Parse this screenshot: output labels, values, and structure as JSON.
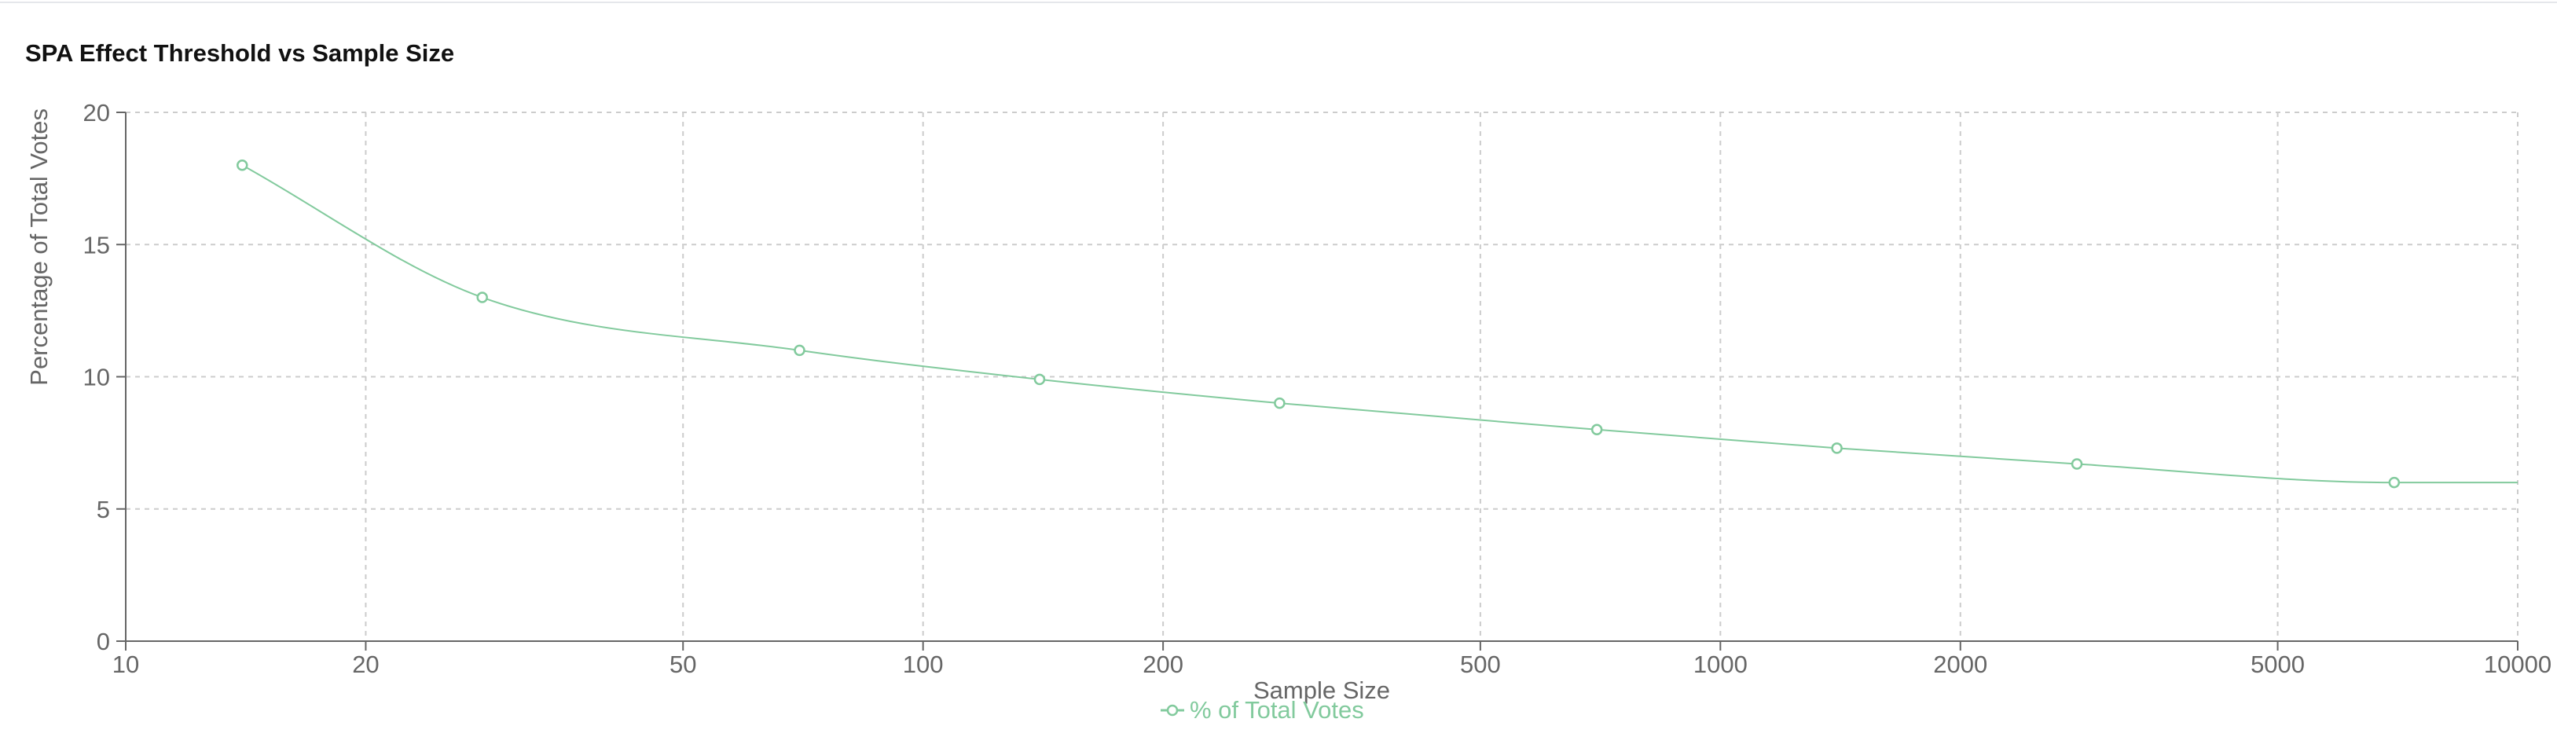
{
  "chart_data": {
    "type": "line",
    "title": "SPA Effect Threshold vs Sample Size",
    "xlabel": "Sample Size",
    "ylabel": "Percentage of Total Votes",
    "x_scale": "log",
    "xlim": [
      10,
      10000
    ],
    "ylim": [
      0,
      20
    ],
    "x_ticks": [
      "10",
      "20",
      "50",
      "100",
      "200",
      "500",
      "1000",
      "2000",
      "5000",
      "10000"
    ],
    "y_ticks": [
      "0",
      "5",
      "10",
      "15",
      "20"
    ],
    "grid": true,
    "legend_position": "bottom",
    "series": [
      {
        "name": "% of Total Votes",
        "color": "#82ca9d",
        "x": [
          14,
          28,
          70,
          140,
          280,
          700,
          1400,
          2800,
          7000,
          10000
        ],
        "y": [
          18,
          13,
          11,
          9.9,
          9,
          8,
          7.3,
          6.7,
          6,
          6
        ]
      }
    ]
  }
}
